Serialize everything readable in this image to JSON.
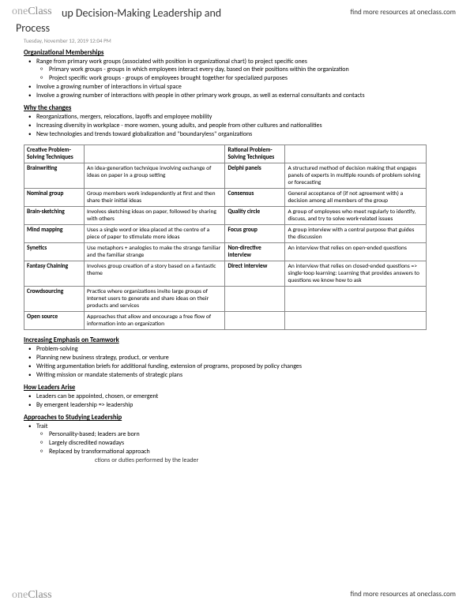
{
  "brand": {
    "one": "one",
    "class": "Class"
  },
  "resources_link": "find more resources at oneclass.com",
  "title_line1": "up Decision-Making Leadership and",
  "title_line2": "Process",
  "timestamp": "Tuesday, November 12, 2019   12:04 PM",
  "sections": {
    "org_mem": {
      "heading": "Organizational Memberships",
      "b1": "Range from primary work groups (associated with position in organizational chart) to project specific ones",
      "b1a": "Primary work groups - groups in which employees interact every day, based on their positions within the organization",
      "b1b": "Project specific work groups - groups of employees brought together for specialized purposes",
      "b2": "Involve a growing number of interactions in virtual space",
      "b3": "Involve a growing number of interactions with people in other primary work groups, as well as external consultants and contacts"
    },
    "why": {
      "heading": "Why the changes",
      "b1": "Reorganizations, mergers, relocations, layoffs and employee mobility",
      "b2": "Increasing diversity in workplace - more women, young adults, and people from other cultures and nationalities",
      "b3": "New technologies and trends toward globalization and \"boundaryless\" organizations"
    },
    "teamwork": {
      "heading": "Increasing Emphasis on Teamwork",
      "b1": "Problem-solving",
      "b2": "Planning new business strategy, product, or venture",
      "b3": "Writing argumentation briefs for additional funding, extension of programs, proposed by policy changes",
      "b4": "Writing mission or mandate statements of strategic plans"
    },
    "leaders": {
      "heading": "How Leaders Arise",
      "b1": "Leaders can be appointed, chosen, or emergent",
      "b2": "By emergent leadership => leadership"
    },
    "approaches": {
      "heading": "Approaches to Studying Leadership",
      "b1": "Trait",
      "b1a": "Personality-based; leaders are born",
      "b1b": "Largely discredited nowadays",
      "b1c": "Replaced by transformational approach"
    }
  },
  "table": {
    "h1": "Creative Problem-Solving Techniques",
    "h2": "Rational Problem-Solving Techniques",
    "rows": {
      "r1": {
        "t1": "Brainwriting",
        "d1": "An idea-generation technique involving exchange of ideas on paper in a group setting",
        "t2": "Delphi panels",
        "d2": "A structured method of decision making that engages panels of experts in multiple rounds of problem solving or forecasting"
      },
      "r2": {
        "t1": "Nominal group",
        "d1": "Group members work independently at first and then share their initial ideas",
        "t2": "Consensus",
        "d2": "General acceptance of (if not agreement with) a decision among all members of the group"
      },
      "r3": {
        "t1": "Brain-sketching",
        "d1": "Involves sketching ideas on paper, followed by sharing with others",
        "t2": "Quality circle",
        "d2": "A group of employees who meet regularly to identify, discuss, and try to solve work-related issues"
      },
      "r4": {
        "t1": "Mind mapping",
        "d1": "Uses a single word or idea placed at the centre of a piece of paper to stimulate more ideas",
        "t2": "Focus group",
        "d2": "A group interview with a central purpose that guides the discussion"
      },
      "r5": {
        "t1": "Synetics",
        "d1": "Use metaphors + analogies to make the strange familiar and the familiar strange",
        "t2": "Non-directive interview",
        "d2": "An interview that relies on open-ended questions"
      },
      "r6": {
        "t1": "Fantasy Chaining",
        "d1": "Involves group creation of a story based on a fantastic theme",
        "t2": "Direct interview",
        "d2": "An interview that relies on closed-ended questions => single-loop learning: Learning that provides answers to questions we know how to ask"
      },
      "r7": {
        "t1": "Crowdsourcing",
        "d1": "Practice where organizations invite large groups of Internet users to generate and share ideas on their products and services",
        "t2": "",
        "d2": ""
      },
      "r8": {
        "t1": "Open source",
        "d1": "Approaches that allow and encourage a free flow of information into an organization",
        "t2": "",
        "d2": ""
      }
    }
  },
  "bottom_cut": "ctions or duties performed by the leader"
}
